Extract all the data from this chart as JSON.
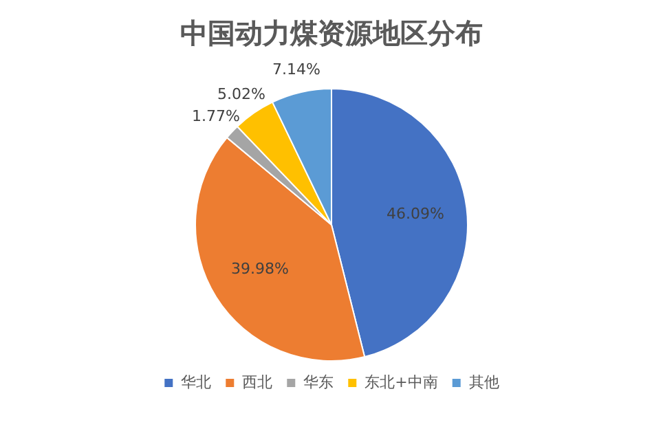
{
  "chart_data": {
    "type": "pie",
    "title": "中国动力煤资源地区分布",
    "categories": [
      "华北",
      "西北",
      "华东",
      "东北+中南",
      "其他"
    ],
    "values": [
      46.09,
      39.98,
      1.77,
      5.02,
      7.14
    ],
    "colors": [
      "#4472c4",
      "#ed7d31",
      "#a5a5a5",
      "#ffc000",
      "#5b9bd5"
    ],
    "value_labels": [
      "46.09%",
      "39.98%",
      "1.77%",
      "5.02%",
      "7.14%"
    ],
    "legend": "bottom"
  }
}
